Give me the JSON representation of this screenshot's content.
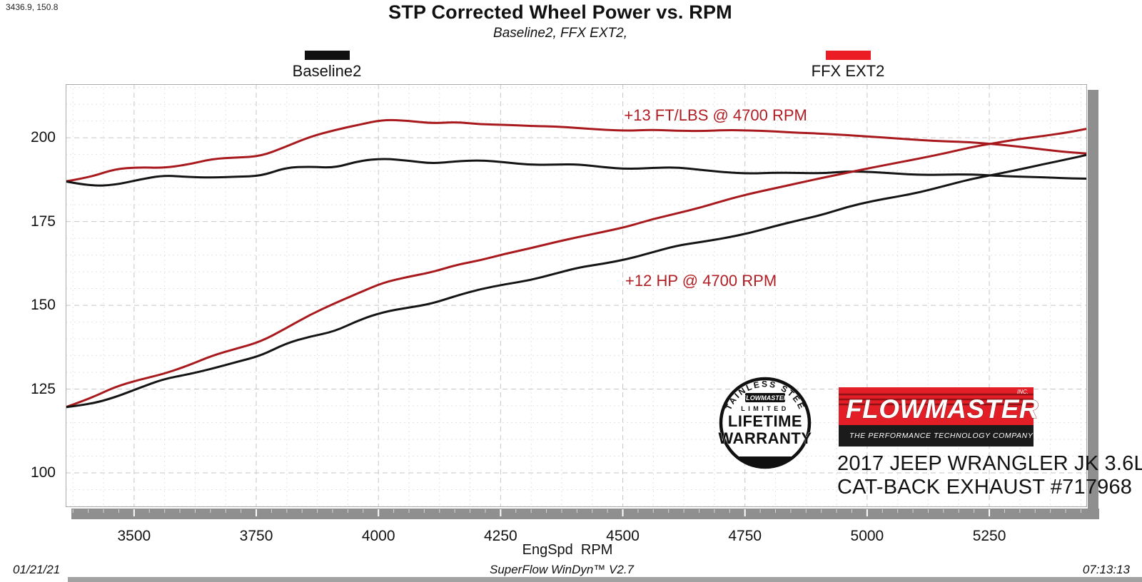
{
  "cursor_readout": "3436.9, 150.8",
  "title": "STP Corrected Wheel Power vs. RPM",
  "subtitle": "Baseline2, FFX EXT2,",
  "legend": [
    {
      "label": "Baseline2",
      "color": "#101010"
    },
    {
      "label": "FFX EXT2",
      "color": "#ec1c24"
    }
  ],
  "annotations": [
    {
      "text": "+13 FT/LBS @ 4700 RPM",
      "rpm": 4690,
      "value": 206.6
    },
    {
      "text": "+12 HP @ 4700 RPM",
      "rpm": 4660,
      "value": 157.3
    }
  ],
  "colors": {
    "curve_red": "#a8191d",
    "curve_black": "#141414",
    "annotation_red": "#b01e24",
    "legend_red": "#ec1c24",
    "logo_red": "#e31e26"
  },
  "x_axis": {
    "label": "EngSpd  RPM",
    "min": 3360,
    "max": 5450,
    "ticks": [
      3500,
      3750,
      4000,
      4250,
      4500,
      4750,
      5000,
      5250
    ]
  },
  "y_axis": {
    "min": 90,
    "max": 216,
    "ticks": [
      100,
      125,
      150,
      175,
      200
    ]
  },
  "footer": {
    "date": "01/21/21",
    "app": "SuperFlow WinDyn™ V2.7",
    "time": "07:13:13"
  },
  "branding": {
    "badge": {
      "arc_text": "STAINLESS STEEL",
      "brand": "FLOWMASTER",
      "limited": "LIMITED",
      "big1": "LIFETIME",
      "big2": "WARRANTY"
    },
    "logo": {
      "name": "FLOWMASTER",
      "inc": "INC.",
      "tagline": "THE PERFORMANCE TECHNOLOGY COMPANY"
    },
    "vehicle_line1": "2017 JEEP WRANGLER JK 3.6L",
    "vehicle_line2": "CAT-BACK EXHAUST #717968"
  },
  "chart_data": {
    "type": "line",
    "title": "STP Corrected Wheel Power vs. RPM",
    "xlabel": "EngSpd RPM",
    "ylabel": "",
    "x_range": [
      3360,
      5450
    ],
    "y_range": [
      90,
      216
    ],
    "grid": "on",
    "legend_position": "top",
    "x": [
      3360,
      3410,
      3460,
      3510,
      3560,
      3610,
      3660,
      3710,
      3760,
      3810,
      3860,
      3910,
      3960,
      4010,
      4060,
      4110,
      4160,
      4210,
      4260,
      4310,
      4360,
      4410,
      4460,
      4510,
      4560,
      4610,
      4660,
      4710,
      4760,
      4810,
      4860,
      4910,
      4960,
      5010,
      5060,
      5110,
      5160,
      5210,
      5260,
      5310,
      5360,
      5410,
      5450
    ],
    "series": [
      {
        "name": "FFX EXT2 Torque (ft-lbs)",
        "color": "#a8191d",
        "width": 3,
        "values": [
          187.0,
          188.2,
          190.7,
          191.2,
          191.0,
          192.0,
          193.7,
          194.1,
          194.5,
          197.3,
          200.3,
          202.3,
          203.9,
          205.4,
          205.1,
          204.3,
          204.7,
          204.0,
          203.9,
          203.5,
          203.4,
          202.9,
          202.4,
          202.1,
          202.4,
          202.1,
          202.0,
          202.3,
          202.2,
          201.9,
          201.5,
          201.2,
          200.8,
          200.3,
          199.8,
          199.3,
          198.9,
          198.7,
          198.1,
          197.4,
          196.5,
          195.7,
          195.3
        ]
      },
      {
        "name": "Baseline2 Torque (ft-lbs)",
        "color": "#141414",
        "width": 3,
        "values": [
          187.0,
          185.6,
          185.9,
          187.5,
          188.8,
          188.3,
          188.1,
          188.4,
          188.6,
          191.1,
          191.4,
          191.0,
          193.1,
          193.8,
          193.2,
          192.3,
          193.0,
          193.3,
          192.7,
          191.9,
          192.0,
          192.1,
          191.2,
          190.7,
          191.0,
          191.2,
          190.4,
          189.7,
          189.3,
          189.6,
          189.5,
          189.4,
          190.0,
          189.8,
          189.3,
          188.9,
          189.0,
          189.1,
          188.7,
          188.4,
          188.2,
          187.9,
          187.8
        ]
      },
      {
        "name": "FFX EXT2 Power (hp)",
        "color": "#a8191d",
        "width": 3,
        "values": [
          119.6,
          122.2,
          125.6,
          127.8,
          129.5,
          132.0,
          135.0,
          137.1,
          139.2,
          143.1,
          147.2,
          150.6,
          153.7,
          156.8,
          158.5,
          159.9,
          162.1,
          163.5,
          165.4,
          167.0,
          168.8,
          170.4,
          171.9,
          173.5,
          175.7,
          177.4,
          179.2,
          181.4,
          183.3,
          184.9,
          186.5,
          188.1,
          189.6,
          191.1,
          192.5,
          193.9,
          195.4,
          197.1,
          198.4,
          199.6,
          200.5,
          201.6,
          202.7
        ]
      },
      {
        "name": "Baseline2 Power (hp)",
        "color": "#141414",
        "width": 3,
        "values": [
          119.6,
          120.5,
          122.5,
          125.3,
          128.0,
          129.4,
          131.1,
          133.1,
          135.0,
          138.6,
          140.7,
          142.2,
          145.6,
          148.0,
          149.3,
          150.5,
          152.9,
          154.9,
          156.3,
          157.5,
          159.4,
          161.3,
          162.4,
          163.8,
          165.8,
          167.8,
          168.9,
          170.1,
          171.6,
          173.6,
          175.4,
          177.1,
          179.4,
          181.1,
          182.4,
          183.8,
          185.7,
          187.6,
          189.0,
          190.5,
          192.1,
          193.6,
          194.9
        ]
      }
    ]
  }
}
